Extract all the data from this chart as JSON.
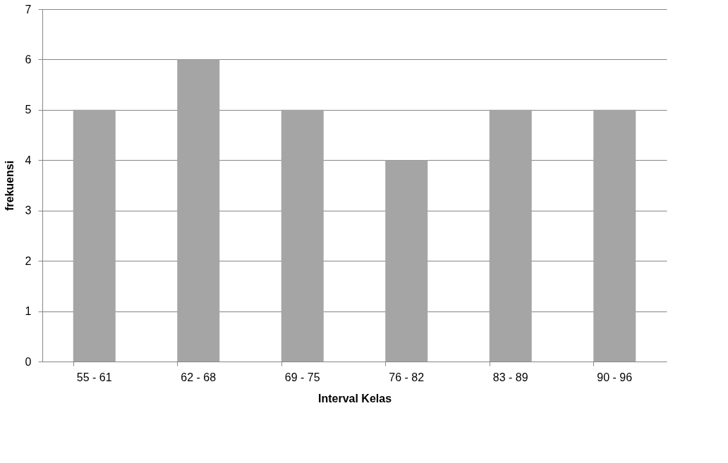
{
  "chart_data": {
    "type": "bar",
    "categories": [
      "55 - 61",
      "62 - 68",
      "69 - 75",
      "76 - 82",
      "83 - 89",
      "90 - 96"
    ],
    "values": [
      5,
      6,
      5,
      4,
      5,
      5
    ],
    "color": "#a5a5a5",
    "ylim": [
      0,
      7
    ],
    "yticks": [
      0,
      1,
      2,
      3,
      4,
      5,
      6,
      7
    ],
    "grid": "y",
    "xlabel": "Interval Kelas",
    "ylabel": "frekuensi"
  }
}
